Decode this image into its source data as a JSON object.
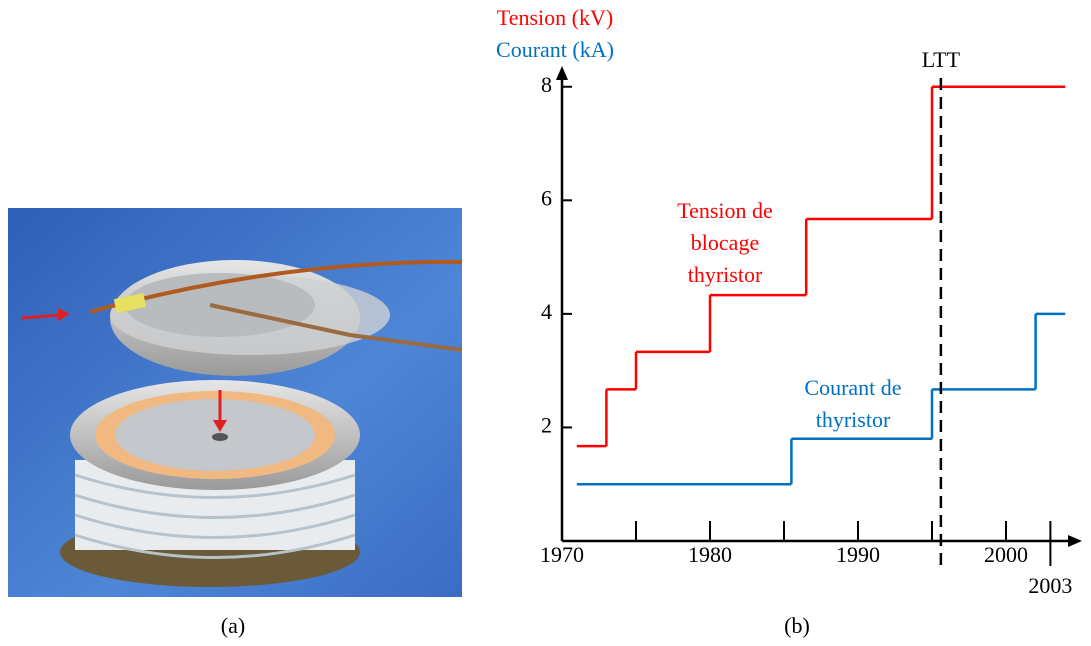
{
  "captions": [
    "(a)",
    "(b)"
  ],
  "chart_data": {
    "type": "step",
    "xlim": [
      1970,
      2005
    ],
    "ylim": [
      0,
      8.33
    ],
    "xticks": [
      1970,
      1980,
      1990,
      2000,
      2003
    ],
    "xminorticks": [
      1975,
      1985,
      1995
    ],
    "yticks": [
      2,
      4,
      6,
      8
    ],
    "series": [
      {
        "name": "Tension (kV)",
        "color": "#ff0000",
        "edges": [
          1971,
          1973,
          1975,
          1980,
          1986.5,
          1995,
          2004
        ],
        "values": [
          1.67,
          2.67,
          3.33,
          4.33,
          5.67,
          8
        ]
      },
      {
        "name": "Courant (kA)",
        "color": "#0070c0",
        "edges": [
          1971,
          1985.5,
          1995,
          2002,
          2004
        ],
        "values": [
          1,
          1.8,
          2.67,
          4
        ]
      }
    ],
    "annotations": [
      [
        "Tension de",
        "blocage",
        "thyristor"
      ],
      [
        "Courant de",
        "thyristor"
      ]
    ],
    "reference_line": {
      "x": 1995.6,
      "label": "LTT"
    }
  }
}
